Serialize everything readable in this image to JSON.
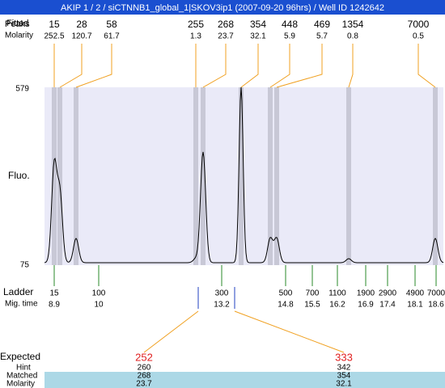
{
  "header": {
    "title": "AKIP 1 / 2 / siCTNNB1_global_1|SKOV3ip1 (2007-09-20 96hrs) / Well ID 1242642"
  },
  "peaks": {
    "label_peaks": "Peaks",
    "label_fitted": "Fitted",
    "label_molarity": "Molarity",
    "items": [
      {
        "size": 15,
        "molarity": 252.5
      },
      {
        "size": 28,
        "molarity": 120.7
      },
      {
        "size": 58,
        "molarity": 61.7
      },
      {
        "size": 255,
        "molarity": 1.3
      },
      {
        "size": 268,
        "molarity": 23.7
      },
      {
        "size": 354,
        "molarity": 32.1
      },
      {
        "size": 448,
        "molarity": 5.9
      },
      {
        "size": 469,
        "molarity": 5.7
      },
      {
        "size": 1354,
        "molarity": 0.8
      },
      {
        "size": 7000,
        "molarity": 0.5
      }
    ]
  },
  "axis": {
    "label": "Fluo.",
    "top": "579",
    "bottom": "75"
  },
  "ladder": {
    "label": "Ladder",
    "time_label": "Mig. time",
    "items": [
      {
        "size": 15,
        "time": 8.9
      },
      {
        "size": 100,
        "time": 10
      },
      {
        "size": 300,
        "time": 13.2
      },
      {
        "size": 500,
        "time": 14.8
      },
      {
        "size": 700,
        "time": 15.5
      },
      {
        "size": 1100,
        "time": 16.2
      },
      {
        "size": 1900,
        "time": 16.9
      },
      {
        "size": 2900,
        "time": 17.4
      },
      {
        "size": 4900,
        "time": 18.1
      },
      {
        "size": 7000,
        "time": 18.6
      }
    ]
  },
  "expected": {
    "label": "Expected",
    "hint_label": "Hint",
    "matched_label": "Matched",
    "molarity_label": "Molarity",
    "items": [
      {
        "expected": 252,
        "hint": 260,
        "matched": 268,
        "molarity": 23.7
      },
      {
        "expected": 333,
        "hint": 342,
        "matched": 354,
        "molarity": 32.1
      }
    ]
  }
}
